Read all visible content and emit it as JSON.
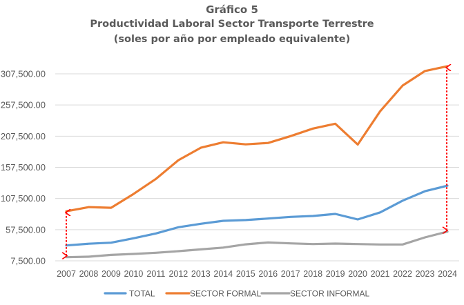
{
  "chart_data": {
    "type": "line",
    "title": "Gráfico 5",
    "subtitle": "Productividad Laboral Sector Transporte Terrestre",
    "subtitle2": "(soles por año por empleado equivalente)",
    "xlabel": "",
    "ylabel": "",
    "categories": [
      "2007",
      "2008",
      "2009",
      "2010",
      "2011",
      "2012",
      "2013",
      "2014",
      "2015",
      "2016",
      "2017",
      "2018",
      "2019",
      "2020",
      "2021",
      "2022",
      "2023",
      "2024"
    ],
    "yticks": [
      "7,500.00",
      "57,500.00",
      "107,500.00",
      "157,500.00",
      "207,500.00",
      "257,500.00",
      "307,500.00"
    ],
    "ylim": [
      7500,
      307500
    ],
    "grid": true,
    "legend_position": "bottom",
    "series": [
      {
        "name": "TOTAL",
        "color": "#5B9BD5",
        "values": [
          32200,
          35000,
          36600,
          43700,
          51400,
          61400,
          66900,
          71700,
          72900,
          75400,
          78000,
          79500,
          82800,
          73900,
          85200,
          104000,
          119200,
          128000
        ]
      },
      {
        "name": "SECTOR FORMAL",
        "color": "#ED7D31",
        "values": [
          87000,
          93700,
          92600,
          114800,
          139000,
          169000,
          188900,
          197700,
          194400,
          196600,
          207500,
          219700,
          227500,
          194000,
          247500,
          288700,
          312000,
          319700
        ]
      },
      {
        "name": "SECTOR INFORMAL",
        "color": "#A5A5A5",
        "values": [
          13400,
          14100,
          17000,
          18600,
          20400,
          23000,
          25900,
          28800,
          34000,
          37000,
          35500,
          34400,
          35200,
          34400,
          33700,
          33700,
          45100,
          54300
        ]
      }
    ],
    "annotations": [
      {
        "type": "double-arrow",
        "color": "#FF0000",
        "x": "2007",
        "from_series": "SECTOR INFORMAL",
        "to_series": "SECTOR FORMAL"
      },
      {
        "type": "double-arrow",
        "color": "#FF0000",
        "x": "2024",
        "from_series": "SECTOR INFORMAL",
        "to_series": "SECTOR FORMAL"
      }
    ]
  }
}
